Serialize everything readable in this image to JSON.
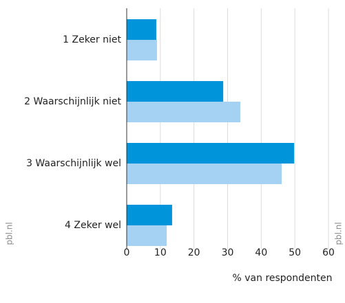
{
  "chart_data": {
    "type": "bar",
    "orientation": "horizontal",
    "categories": [
      "1 Zeker niet",
      "2 Waarschijnlijk niet",
      "3 Waarschijnlijk wel",
      "4 Zeker wel"
    ],
    "series": [
      {
        "color": "#0095da",
        "values": [
          8.8,
          28.7,
          49.8,
          13.5
        ]
      },
      {
        "color": "#a5d2f3",
        "values": [
          9.0,
          33.8,
          46.1,
          11.9
        ]
      }
    ],
    "xlabel": "% van respondenten",
    "xlim": [
      0,
      60
    ],
    "xticks": [
      0,
      10,
      20,
      30,
      40,
      50,
      60
    ],
    "grid": true,
    "watermark": "pbl.nl"
  }
}
